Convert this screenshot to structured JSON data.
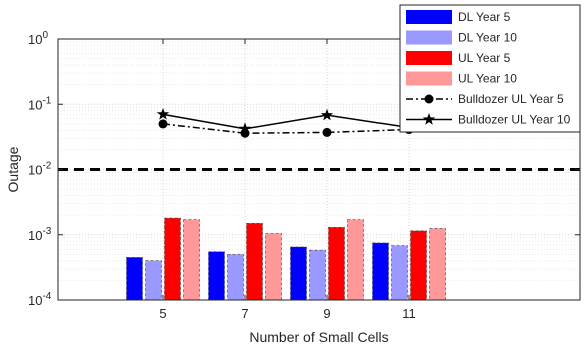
{
  "chart_data": {
    "type": "bar",
    "title": "",
    "xlabel": "Number of Small Cells",
    "ylabel": "Outage",
    "y_scale": "log",
    "ylim": [
      0.0001,
      1
    ],
    "grid": true,
    "legend_position": "top-right",
    "categories": [
      "5",
      "7",
      "9",
      "11"
    ],
    "y_tick_labels": [
      {
        "base": "10",
        "exp": "0"
      },
      {
        "base": "10",
        "exp": "-1"
      },
      {
        "base": "10",
        "exp": "-2"
      },
      {
        "base": "10",
        "exp": "-3"
      },
      {
        "base": "10",
        "exp": "-4"
      }
    ],
    "y_tick_values": [
      1,
      0.1,
      0.01,
      0.001,
      0.0001
    ],
    "series": [
      {
        "name": "DL Year 5",
        "kind": "bar",
        "color": "#0000ff",
        "values": [
          0.00045,
          0.00055,
          0.00065,
          0.00075
        ]
      },
      {
        "name": "DL Year 10",
        "kind": "bar",
        "color": "#9999ff",
        "values": [
          0.0004,
          0.0005,
          0.00058,
          0.00068
        ]
      },
      {
        "name": "UL Year 5",
        "kind": "bar",
        "color": "#ff0000",
        "values": [
          0.0018,
          0.0015,
          0.0013,
          0.00115
        ]
      },
      {
        "name": "UL Year 10",
        "kind": "bar",
        "color": "#ff9999",
        "values": [
          0.0017,
          0.00105,
          0.0017,
          0.00125
        ]
      },
      {
        "name": "Bulldozer UL Year 5",
        "kind": "line",
        "color": "#000000",
        "marker": "circle",
        "line_style": "dash-dot",
        "values": [
          0.05,
          0.036,
          0.037,
          0.041
        ]
      },
      {
        "name": "Bulldozer UL Year 10",
        "kind": "line",
        "color": "#000000",
        "marker": "star",
        "line_style": "solid",
        "values": [
          0.07,
          0.042,
          0.068,
          0.044
        ]
      }
    ],
    "reference_line": {
      "value": 0.01,
      "color": "#000000",
      "style": "dashed"
    }
  }
}
